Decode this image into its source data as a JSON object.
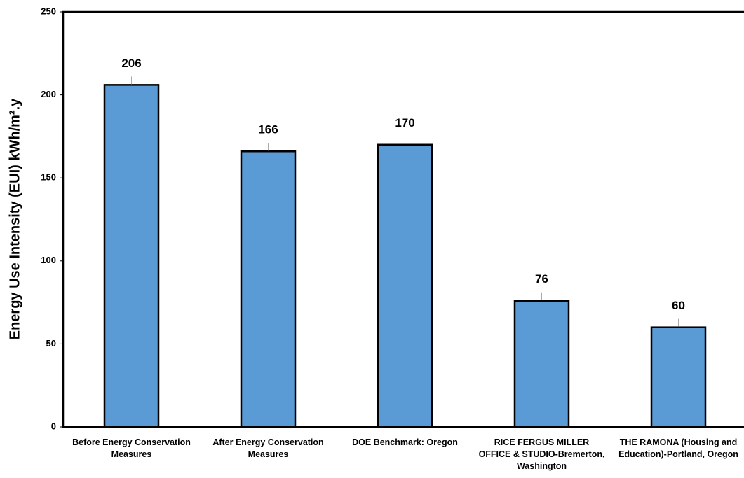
{
  "chart_data": {
    "type": "bar",
    "y_label": "Energy Use Intensity (EUI) kWh/m².y",
    "categories": [
      "Before Energy Conservation Measures",
      "After Energy Conservation Measures",
      "DOE Benchmark: Oregon",
      "RICE FERGUS MILLER OFFICE & STUDIO-Bremerton, Washington",
      "THE RAMONA (Housing and Education)-Portland, Oregon"
    ],
    "values": [
      206,
      166,
      170,
      76,
      60
    ],
    "color": "#5b9bd5",
    "ylim": [
      0,
      250
    ],
    "yticks": [
      0,
      50,
      100,
      150,
      200,
      250
    ]
  }
}
